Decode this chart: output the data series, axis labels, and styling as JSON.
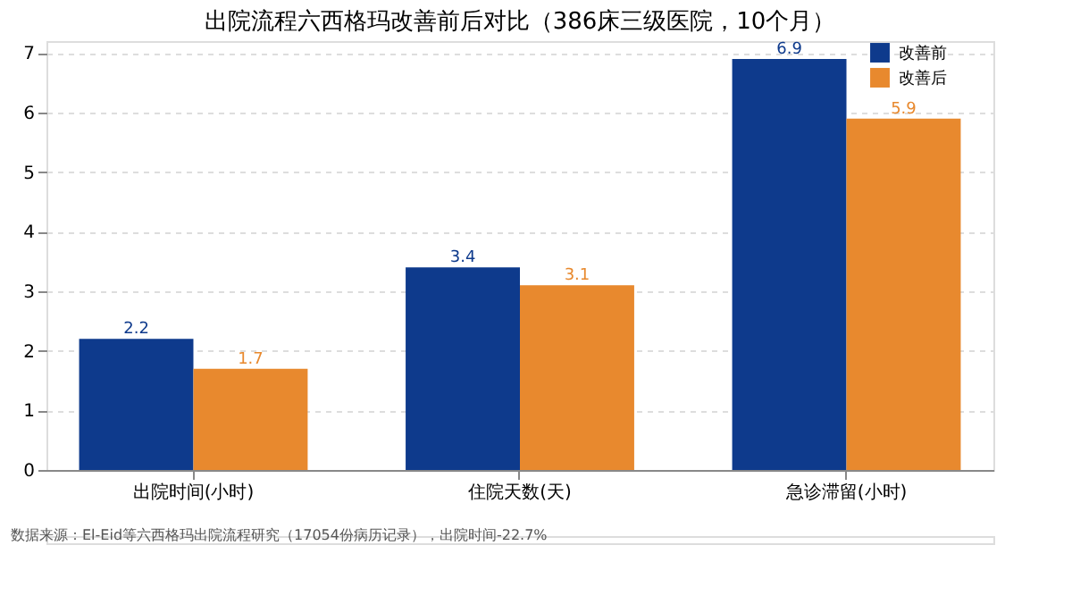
{
  "chart_data": {
    "type": "bar",
    "title": "出院流程六西格玛改善前后对比（386床三级医院，10个月）",
    "categories": [
      "出院时间(小时)",
      "住院天数(天)",
      "急诊滞留(小时)"
    ],
    "series": [
      {
        "name": "改善前",
        "color": "#0e3a8c",
        "values": [
          2.2,
          3.4,
          6.9
        ]
      },
      {
        "name": "改善后",
        "color": "#e8892e",
        "values": [
          1.7,
          3.1,
          5.9
        ]
      }
    ],
    "ylim": [
      0,
      7.2
    ],
    "yticks": [
      0,
      1,
      2,
      3,
      4,
      5,
      6,
      7
    ],
    "grid": "y",
    "legend": "top right",
    "data_labels": true,
    "annotations": [
      "数据来源：El-Eid等六西格玛出院流程研究（17054份病历记录），出院时间-22.7%"
    ]
  }
}
